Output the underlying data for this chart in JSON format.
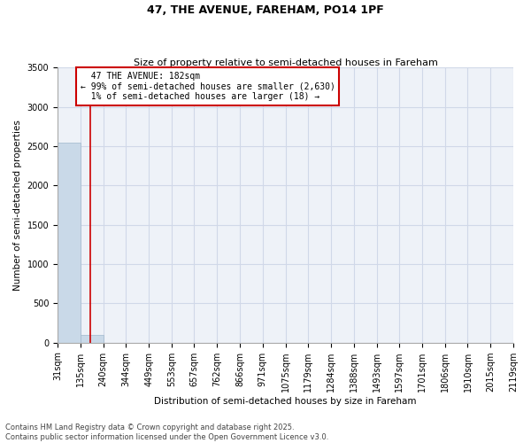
{
  "title": "47, THE AVENUE, FAREHAM, PO14 1PF",
  "subtitle": "Size of property relative to semi-detached houses in Fareham",
  "xlabel": "Distribution of semi-detached houses by size in Fareham",
  "ylabel": "Number of semi-detached properties",
  "bin_edges": [
    31,
    135,
    240,
    344,
    449,
    553,
    657,
    762,
    866,
    971,
    1075,
    1179,
    1284,
    1388,
    1493,
    1597,
    1701,
    1806,
    1910,
    2015,
    2119
  ],
  "bar_heights": [
    2550,
    98,
    0,
    0,
    0,
    0,
    0,
    0,
    0,
    0,
    0,
    0,
    0,
    0,
    0,
    0,
    0,
    0,
    0,
    0
  ],
  "bar_color": "#c9d9e8",
  "bar_edgecolor": "#a0b8cc",
  "property_size": 182,
  "property_label": "47 THE AVENUE: 182sqm",
  "pct_smaller": 99,
  "count_smaller": 2630,
  "pct_larger": 1,
  "count_larger": 18,
  "vline_color": "#cc0000",
  "annotation_box_color": "#cc0000",
  "ylim": [
    0,
    3500
  ],
  "yticks": [
    0,
    500,
    1000,
    1500,
    2000,
    2500,
    3000,
    3500
  ],
  "grid_color": "#d0d8e8",
  "background_color": "#eef2f8",
  "title_fontsize": 9,
  "subtitle_fontsize": 8,
  "axis_fontsize": 7.5,
  "tick_fontsize": 7,
  "ann_fontsize": 7,
  "footer_text": "Contains HM Land Registry data © Crown copyright and database right 2025.\nContains public sector information licensed under the Open Government Licence v3.0."
}
